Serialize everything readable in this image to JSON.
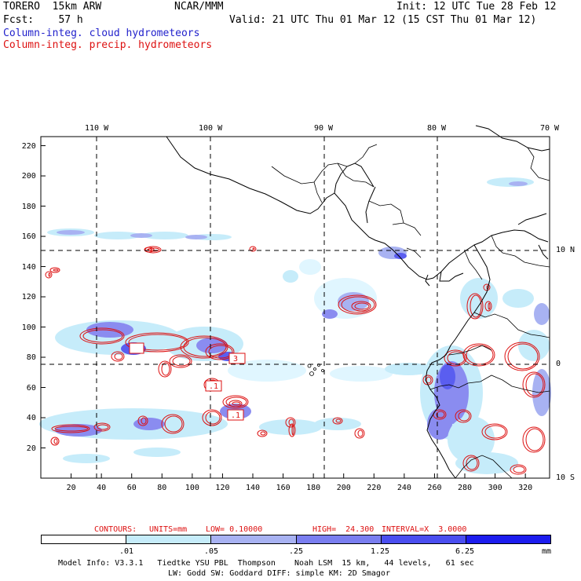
{
  "header": {
    "model": "TORERO  15km ARW",
    "org": "NCAR/MMM",
    "init": "Init: 12 UTC Tue 28 Feb 12",
    "fcst": "Fcst:    57 h",
    "valid": "Valid: 21 UTC Thu 01 Mar 12 (15 CST Thu 01 Mar 12)",
    "field_cloud": "Column-integ. cloud hydrometeors",
    "field_precip": "Column-integ. precip. hydrometeors"
  },
  "colors": {
    "cloud_text": "#2222cc",
    "precip_text": "#dd1111",
    "shade_1": "#e0f6ff",
    "shade_2": "#c6ecfa",
    "shade_3": "#a8b2f2",
    "shade_4": "#8a8cf0",
    "shade_5": "#5a5ef0",
    "shade_6": "#3838f0",
    "shade_7": "#1c1cee"
  },
  "map": {
    "lon_labels": [
      "110 W",
      "100 W",
      "90 W",
      "80 W",
      "70 W"
    ],
    "lat_labels": [
      "10 N",
      "0",
      "10 S"
    ],
    "x_ticks": [
      "20",
      "40",
      "60",
      "80",
      "100",
      "120",
      "140",
      "160",
      "180",
      "200",
      "220",
      "240",
      "260",
      "280",
      "300",
      "320"
    ],
    "y_ticks": [
      "220",
      "200",
      "180",
      "160",
      "140",
      "120",
      "100",
      "80",
      "60",
      "40",
      "20"
    ],
    "contour_labels": [
      "3",
      ".1",
      ".1"
    ]
  },
  "contours_info": {
    "label": "CONTOURS:",
    "units": "UNITS=mm",
    "low": "LOW= 0.10000",
    "high": "HIGH=  24.300",
    "interval": "INTERVAL=X  3.0000"
  },
  "colorbar": {
    "labels": [
      ".01",
      ".05",
      ".25",
      "1.25",
      "6.25"
    ],
    "units": "mm"
  },
  "footer": {
    "line1": "Model Info: V3.3.1   Tiedtke YSU PBL  Thompson    Noah LSM  15 km,   44 levels,   61 sec",
    "line2": "LW: Godd SW: Goddard DIFF: simple KM: 2D Smagor"
  }
}
